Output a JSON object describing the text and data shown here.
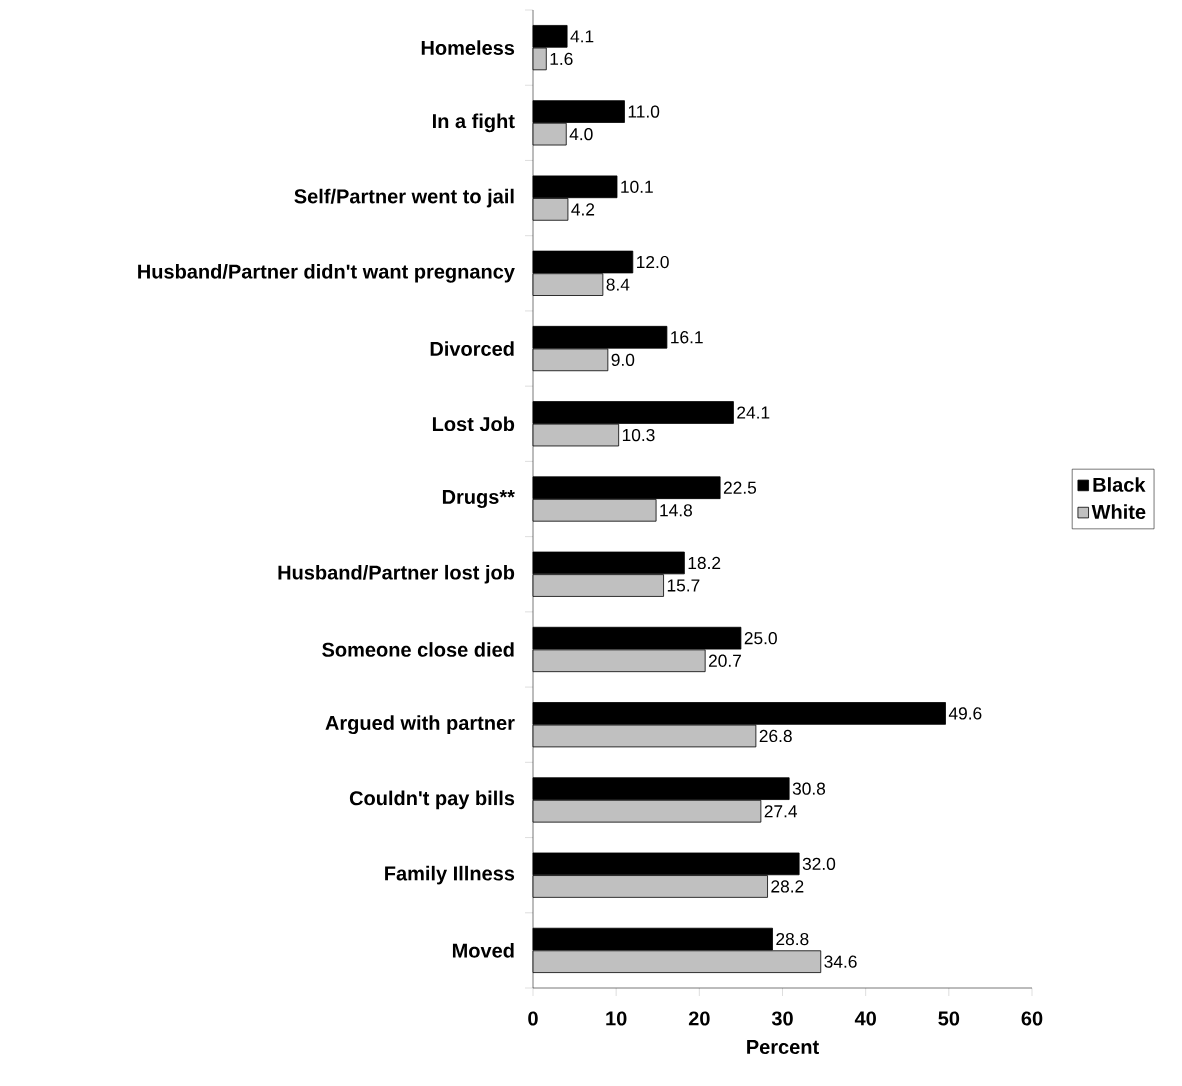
{
  "chart_data": {
    "type": "bar",
    "orientation": "horizontal",
    "xlabel": "Percent",
    "categories": [
      "Homeless",
      "In a fight",
      "Self/Partner went to jail",
      "Husband/Partner didn't want pregnancy",
      "Divorced",
      "Lost Job",
      "Drugs**",
      "Husband/Partner lost job",
      "Someone close died",
      "Argued with partner",
      "Couldn't pay bills",
      "Family Illness",
      "Moved"
    ],
    "series": [
      {
        "name": "Black",
        "color": "#000000",
        "values": [
          4.1,
          11.0,
          10.1,
          12.0,
          16.1,
          24.1,
          22.5,
          18.2,
          25.0,
          49.6,
          30.8,
          32.0,
          28.8
        ],
        "value_labels": [
          "4.1",
          "11.0",
          "10.1",
          "12.0",
          "16.1",
          "24.1",
          "22.5",
          "18.2",
          "25.0",
          "49.6",
          "30.8",
          "32.0",
          "28.8"
        ]
      },
      {
        "name": "White",
        "color": "#c0c0c0",
        "values": [
          1.6,
          4.0,
          4.2,
          8.4,
          9.0,
          10.3,
          14.8,
          15.7,
          20.7,
          26.8,
          27.4,
          28.2,
          34.6
        ],
        "value_labels": [
          "1.6",
          "4.0",
          "4.2",
          "8.4",
          "9.0",
          "10.3",
          "14.8",
          "15.7",
          "20.7",
          "26.8",
          "27.4",
          "28.2",
          "34.6"
        ]
      }
    ],
    "xlim": [
      0,
      60
    ],
    "xticks": [
      0,
      10,
      20,
      30,
      40,
      50,
      60
    ],
    "legend": "right"
  }
}
